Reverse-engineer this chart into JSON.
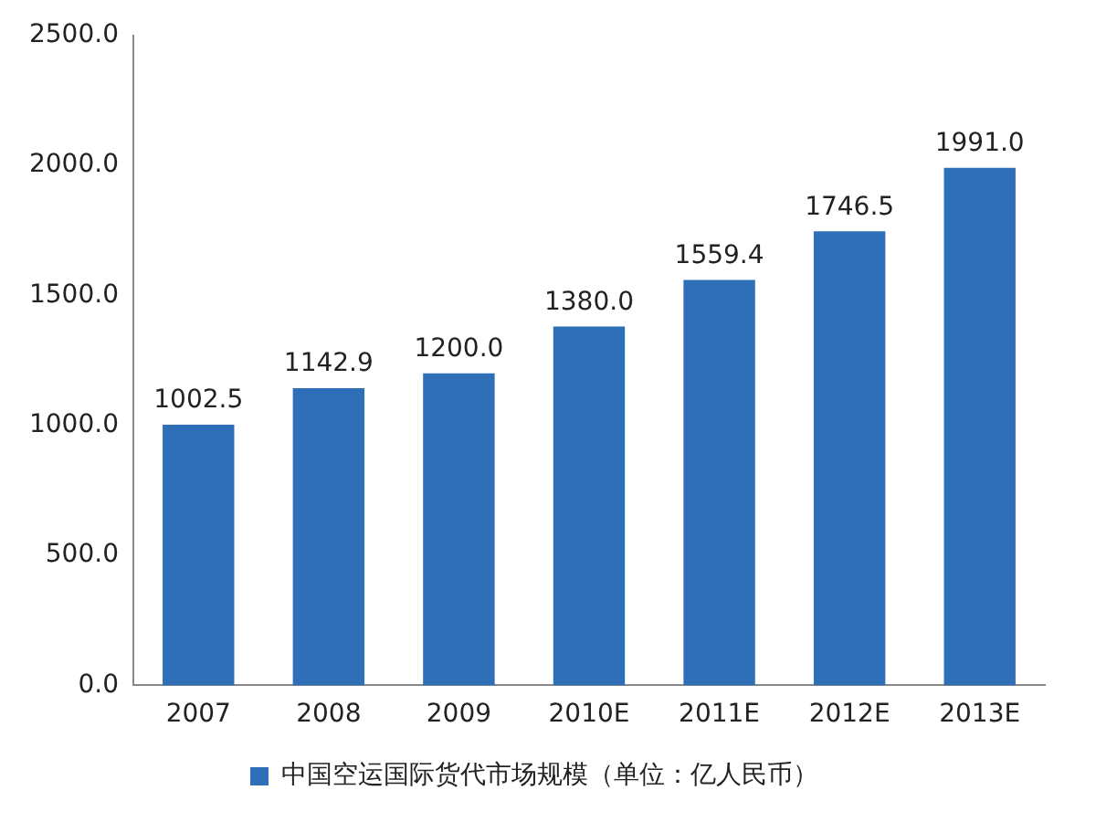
{
  "chart_data": {
    "type": "bar",
    "categories": [
      "2007",
      "2008",
      "2009",
      "2010E",
      "2011E",
      "2012E",
      "2013E"
    ],
    "series": [
      {
        "name": "中国空运国际货代市场规模（单位：亿人民币）",
        "color": "#2f6fb8",
        "values": [
          1002.5,
          1142.9,
          1200.0,
          1380.0,
          1559.4,
          1746.5,
          1991.0
        ],
        "value_labels": [
          "1002.5",
          "1142.9",
          "1200.0",
          "1380.0",
          "1559.4",
          "1746.5",
          "1991.0"
        ]
      }
    ],
    "ylim": [
      0,
      2500
    ],
    "yticks": [
      {
        "value": 0,
        "label": "0.0"
      },
      {
        "value": 500,
        "label": "500.0"
      },
      {
        "value": 1000,
        "label": "1000.0"
      },
      {
        "value": 1500,
        "label": "1500.0"
      },
      {
        "value": 2000,
        "label": "2000.0"
      },
      {
        "value": 2500,
        "label": "2500.0"
      }
    ],
    "grid": false,
    "legend": "bottom"
  }
}
